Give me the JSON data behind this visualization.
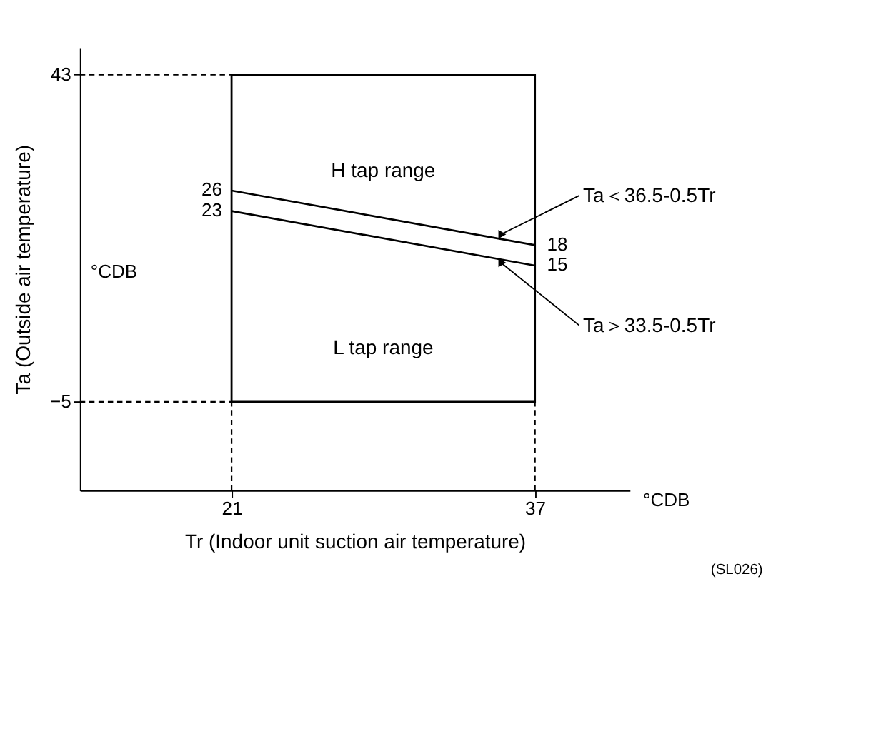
{
  "chart_data": {
    "type": "line",
    "xlabel": "Tr (Indoor unit suction air temperature)",
    "ylabel": "Ta (Outside air temperature)",
    "xlim": [
      13,
      42
    ],
    "ylim": [
      -18,
      47
    ],
    "xticks": [
      21,
      37
    ],
    "yticks": [
      -5,
      43
    ],
    "grid": false,
    "x": [
      21,
      37
    ],
    "series": [
      {
        "values": [
          26,
          18
        ],
        "color": "#000000",
        "value_labels": [
          "26",
          "18"
        ]
      },
      {
        "values": [
          23,
          15
        ],
        "color": "#000000",
        "value_labels": [
          "23",
          "15"
        ]
      }
    ],
    "line_style": "solid",
    "ref_lines": [
      {
        "axis": "y",
        "value": 43,
        "line_style": "dashed"
      },
      {
        "axis": "y",
        "value": -5,
        "line_style": "dashed"
      },
      {
        "axis": "x",
        "value": 21,
        "line_style": "dashed"
      },
      {
        "axis": "x",
        "value": 37,
        "line_style": "dashed"
      }
    ],
    "annotations": [
      "H tap range",
      "L tap range",
      {
        "text": "Ta＜36.5-0.5Tr",
        "x": 35,
        "y": 19
      },
      {
        "text": "Ta＞33.5-0.5Tr",
        "x": 35,
        "y": 16
      },
      "°CDB",
      "°CDB",
      "(SL026)"
    ]
  }
}
